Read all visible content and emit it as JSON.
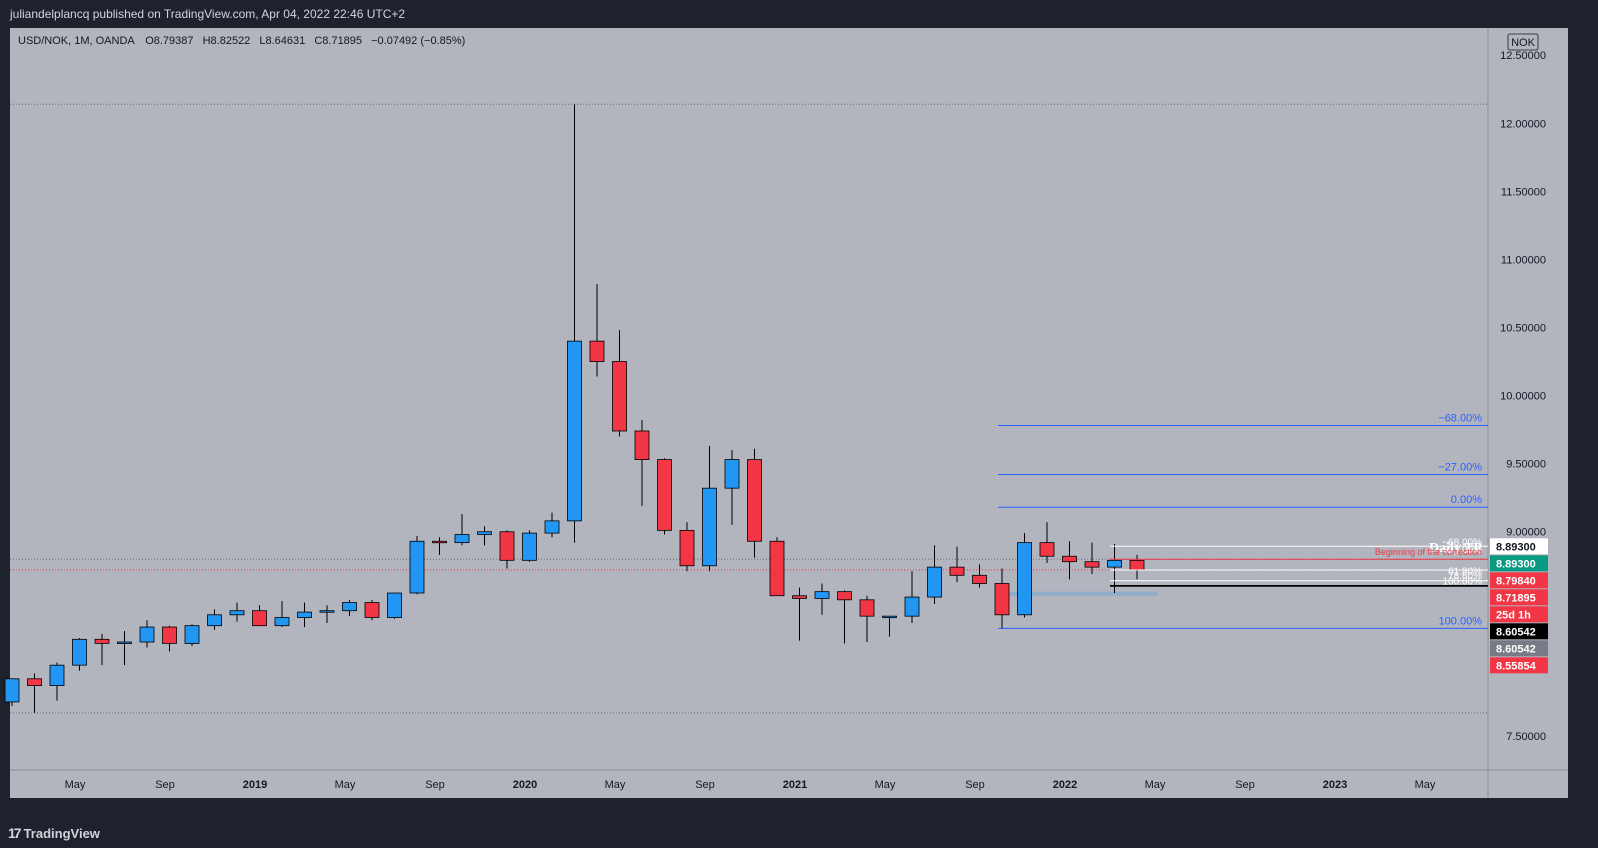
{
  "header": {
    "attribution": "juliandelplancq published on TradingView.com, Apr 04, 2022 22:46 UTC+2"
  },
  "footer": {
    "brand": "TradingView"
  },
  "legend": {
    "symbol": "USD/NOK, 1M, OANDA",
    "open": "O8.79387",
    "high": "H8.82522",
    "low": "L8.64631",
    "close": "C8.71895",
    "change": "−0.07492 (−0.85%)"
  },
  "currency_button": "NOK",
  "colors": {
    "background": "#b2b5be",
    "frame": "#1e222d",
    "up": "#2196f3",
    "down": "#f23645",
    "fib_line": "#2962ff",
    "fib_text": "#2962ff",
    "axis_text": "#131722"
  },
  "chart_data": {
    "type": "candlestick",
    "symbol": "USD/NOK",
    "interval": "1M",
    "source": "OANDA",
    "ylim": [
      7.25,
      12.7
    ],
    "y_ticks": [
      "12.50000",
      "12.00000",
      "11.50000",
      "11.00000",
      "10.50000",
      "10.00000",
      "9.50000",
      "9.00000",
      "8.00000",
      "7.50000"
    ],
    "x_ticks": [
      "May",
      "Sep",
      "2019",
      "May",
      "Sep",
      "2020",
      "May",
      "Sep",
      "2021",
      "May",
      "Sep",
      "2022",
      "May",
      "Sep",
      "2023",
      "May"
    ],
    "candles": [
      {
        "o": 7.75,
        "h": 7.92,
        "l": 7.72,
        "c": 7.92
      },
      {
        "o": 7.92,
        "h": 7.96,
        "l": 7.67,
        "c": 7.87
      },
      {
        "o": 7.87,
        "h": 8.04,
        "l": 7.76,
        "c": 8.02
      },
      {
        "o": 8.02,
        "h": 8.22,
        "l": 7.98,
        "c": 8.21
      },
      {
        "o": 8.21,
        "h": 8.25,
        "l": 8.02,
        "c": 8.18
      },
      {
        "o": 8.18,
        "h": 8.27,
        "l": 8.02,
        "c": 8.19
      },
      {
        "o": 8.19,
        "h": 8.35,
        "l": 8.15,
        "c": 8.3
      },
      {
        "o": 8.3,
        "h": 8.31,
        "l": 8.12,
        "c": 8.18
      },
      {
        "o": 8.18,
        "h": 8.32,
        "l": 8.16,
        "c": 8.31
      },
      {
        "o": 8.31,
        "h": 8.43,
        "l": 8.28,
        "c": 8.39
      },
      {
        "o": 8.39,
        "h": 8.48,
        "l": 8.34,
        "c": 8.42
      },
      {
        "o": 8.42,
        "h": 8.46,
        "l": 8.32,
        "c": 8.31
      },
      {
        "o": 8.31,
        "h": 8.49,
        "l": 8.3,
        "c": 8.37
      },
      {
        "o": 8.37,
        "h": 8.48,
        "l": 8.3,
        "c": 8.41
      },
      {
        "o": 8.41,
        "h": 8.46,
        "l": 8.33,
        "c": 8.42
      },
      {
        "o": 8.42,
        "h": 8.5,
        "l": 8.38,
        "c": 8.48
      },
      {
        "o": 8.48,
        "h": 8.5,
        "l": 8.35,
        "c": 8.37
      },
      {
        "o": 8.37,
        "h": 8.55,
        "l": 8.36,
        "c": 8.55
      },
      {
        "o": 8.55,
        "h": 8.97,
        "l": 8.54,
        "c": 8.93
      },
      {
        "o": 8.93,
        "h": 8.96,
        "l": 8.83,
        "c": 8.92
      },
      {
        "o": 8.92,
        "h": 9.13,
        "l": 8.9,
        "c": 8.98
      },
      {
        "o": 8.98,
        "h": 9.04,
        "l": 8.9,
        "c": 9.0
      },
      {
        "o": 9.0,
        "h": 9.01,
        "l": 8.73,
        "c": 8.79
      },
      {
        "o": 8.79,
        "h": 9.01,
        "l": 8.78,
        "c": 8.99
      },
      {
        "o": 8.99,
        "h": 9.14,
        "l": 8.96,
        "c": 9.08
      },
      {
        "o": 9.08,
        "h": 12.14,
        "l": 8.92,
        "c": 10.4
      },
      {
        "o": 10.4,
        "h": 10.82,
        "l": 10.14,
        "c": 10.25
      },
      {
        "o": 10.25,
        "h": 10.48,
        "l": 9.7,
        "c": 9.74
      },
      {
        "o": 9.74,
        "h": 9.82,
        "l": 9.19,
        "c": 9.53
      },
      {
        "o": 9.53,
        "h": 9.54,
        "l": 8.98,
        "c": 9.01
      },
      {
        "o": 9.01,
        "h": 9.07,
        "l": 8.71,
        "c": 8.75
      },
      {
        "o": 8.75,
        "h": 9.63,
        "l": 8.71,
        "c": 9.32
      },
      {
        "o": 9.32,
        "h": 9.6,
        "l": 9.05,
        "c": 9.53
      },
      {
        "o": 9.53,
        "h": 9.61,
        "l": 8.81,
        "c": 8.93
      },
      {
        "o": 8.93,
        "h": 8.96,
        "l": 8.53,
        "c": 8.53
      },
      {
        "o": 8.53,
        "h": 8.59,
        "l": 8.2,
        "c": 8.51
      },
      {
        "o": 8.51,
        "h": 8.62,
        "l": 8.39,
        "c": 8.56
      },
      {
        "o": 8.56,
        "h": 8.57,
        "l": 8.18,
        "c": 8.5
      },
      {
        "o": 8.5,
        "h": 8.53,
        "l": 8.19,
        "c": 8.38
      },
      {
        "o": 8.38,
        "h": 8.38,
        "l": 8.23,
        "c": 8.38
      },
      {
        "o": 8.38,
        "h": 8.71,
        "l": 8.33,
        "c": 8.52
      },
      {
        "o": 8.52,
        "h": 8.9,
        "l": 8.47,
        "c": 8.74
      },
      {
        "o": 8.74,
        "h": 8.89,
        "l": 8.63,
        "c": 8.68
      },
      {
        "o": 8.68,
        "h": 8.76,
        "l": 8.59,
        "c": 8.62
      },
      {
        "o": 8.62,
        "h": 8.73,
        "l": 8.29,
        "c": 8.39
      },
      {
        "o": 8.39,
        "h": 8.99,
        "l": 8.37,
        "c": 8.92
      },
      {
        "o": 8.92,
        "h": 9.07,
        "l": 8.77,
        "c": 8.82
      },
      {
        "o": 8.82,
        "h": 8.93,
        "l": 8.65,
        "c": 8.78
      },
      {
        "o": 8.78,
        "h": 8.92,
        "l": 8.69,
        "c": 8.74
      },
      {
        "o": 8.74,
        "h": 8.91,
        "l": 8.55,
        "c": 8.79
      },
      {
        "o": 8.79,
        "h": 8.83,
        "l": 8.65,
        "c": 8.72
      }
    ],
    "fib_set_large": {
      "levels": [
        {
          "label": "−68.00%",
          "y": 9.78
        },
        {
          "label": "−27.00%",
          "y": 9.42
        },
        {
          "label": "0.00%",
          "y": 9.18
        },
        {
          "label": "100.00%",
          "y": 8.29
        }
      ]
    },
    "fib_set_small_labels": [
      "−68.00%",
      "−27.00%",
      "61.80%",
      "78.60%",
      "100.00%"
    ],
    "annotations": {
      "daily_tp": "Daily TP",
      "beginning_correction": "Beginning of the correction"
    },
    "price_labels": [
      {
        "text": "8.89300",
        "y": 8.893,
        "bg": "#ffffff",
        "fg": "#131722"
      },
      {
        "text": "8.89300",
        "y": 8.893,
        "bg": "#089981",
        "fg": "#ffffff"
      },
      {
        "text": "8.79840",
        "y": 8.7984,
        "bg": "#f23645",
        "fg": "#ffffff"
      },
      {
        "text": "8.71895",
        "y": 8.71895,
        "bg": "#f23645",
        "fg": "#ffffff"
      },
      {
        "text": "25d 1h",
        "y": 8.71895,
        "bg": "#f23645",
        "fg": "#ffffff"
      },
      {
        "text": "8.60542",
        "y": 8.60542,
        "bg": "#000000",
        "fg": "#ffffff"
      },
      {
        "text": "8.60542",
        "y": 8.60542,
        "bg": "#787b86",
        "fg": "#ffffff"
      },
      {
        "text": "8.55854",
        "y": 8.55854,
        "bg": "#f23645",
        "fg": "#ffffff"
      }
    ]
  }
}
